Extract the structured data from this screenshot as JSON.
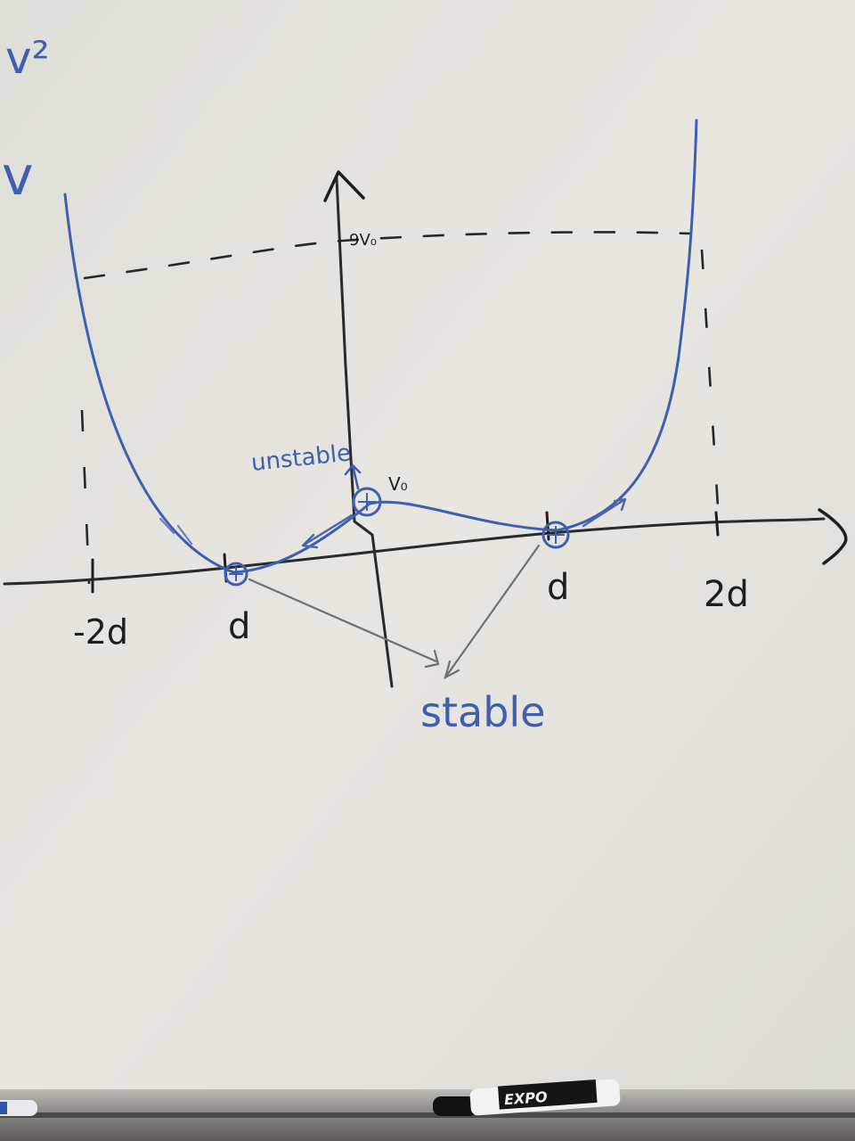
{
  "board_text": {
    "corner_top": "v²",
    "corner_left": "v",
    "peak_label": "9V₀",
    "unstable_label": "unstable",
    "center_label": "V₀",
    "stable_label": "stable",
    "x_labels": {
      "neg_2d": "-2d",
      "neg_d": "d",
      "pos_d": "d",
      "pos_2d": "2d"
    },
    "marker_brand": "EXPO"
  },
  "colors": {
    "board": "#e6e4df",
    "ink_black": "#1e1e1e",
    "ink_blue": "#3f5fae",
    "ink_gray": "#707070",
    "tray": "#7b7b78"
  },
  "icons": {
    "marker": "dry-erase-marker-icon"
  }
}
